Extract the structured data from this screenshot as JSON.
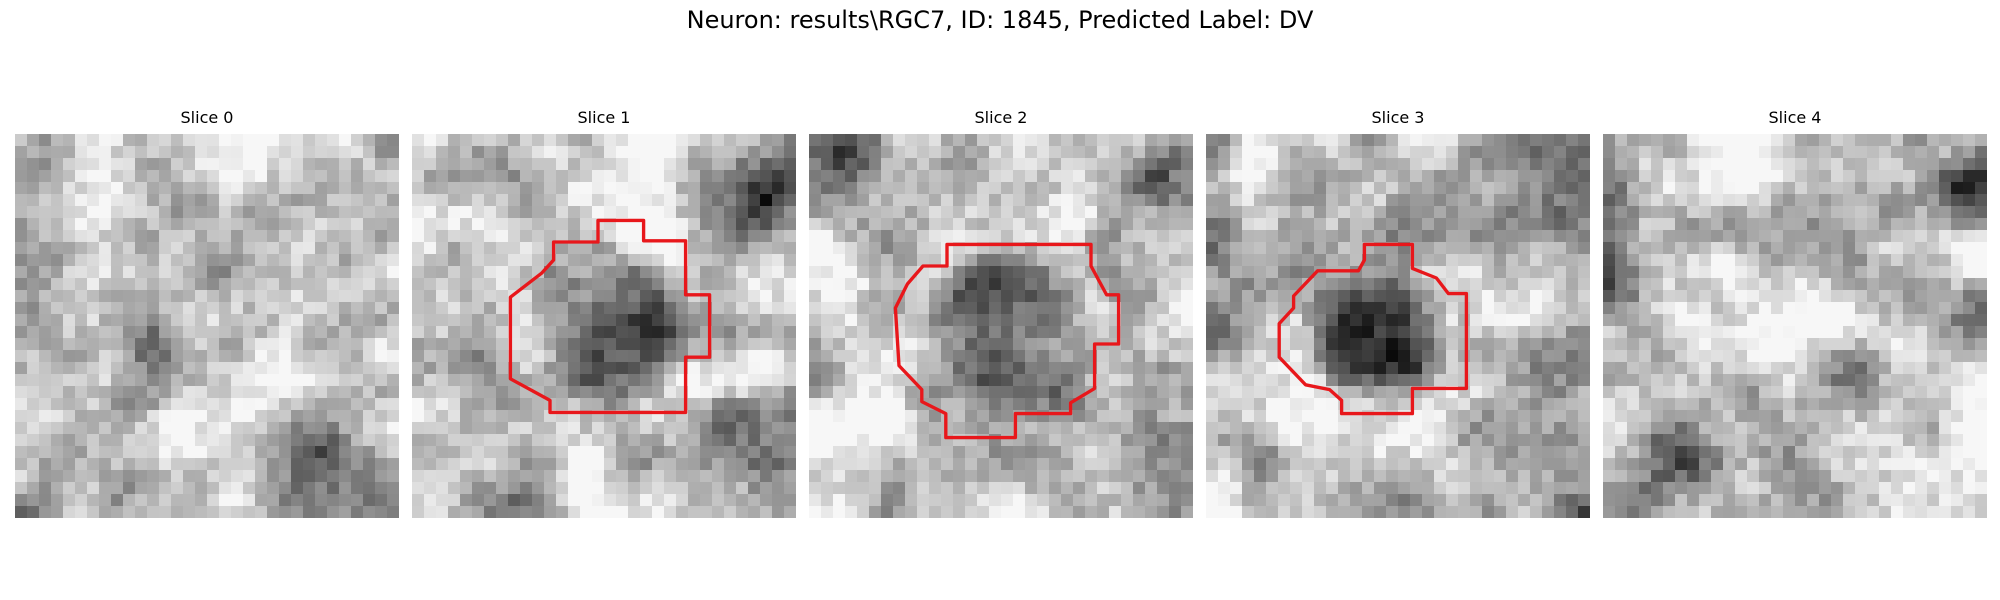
{
  "figure": {
    "title": "Neuron: results\\RGC7, ID: 1845, Predicted Label: DV"
  },
  "colors": {
    "contour": "#e8171b",
    "background": "#ffffff"
  },
  "panels": [
    {
      "title": "Slice 0",
      "has_roi": false
    },
    {
      "title": "Slice 1",
      "has_roi": true
    },
    {
      "title": "Slice 2",
      "has_roi": true
    },
    {
      "title": "Slice 3",
      "has_roi": true
    },
    {
      "title": "Slice 4",
      "has_roi": false
    }
  ]
}
